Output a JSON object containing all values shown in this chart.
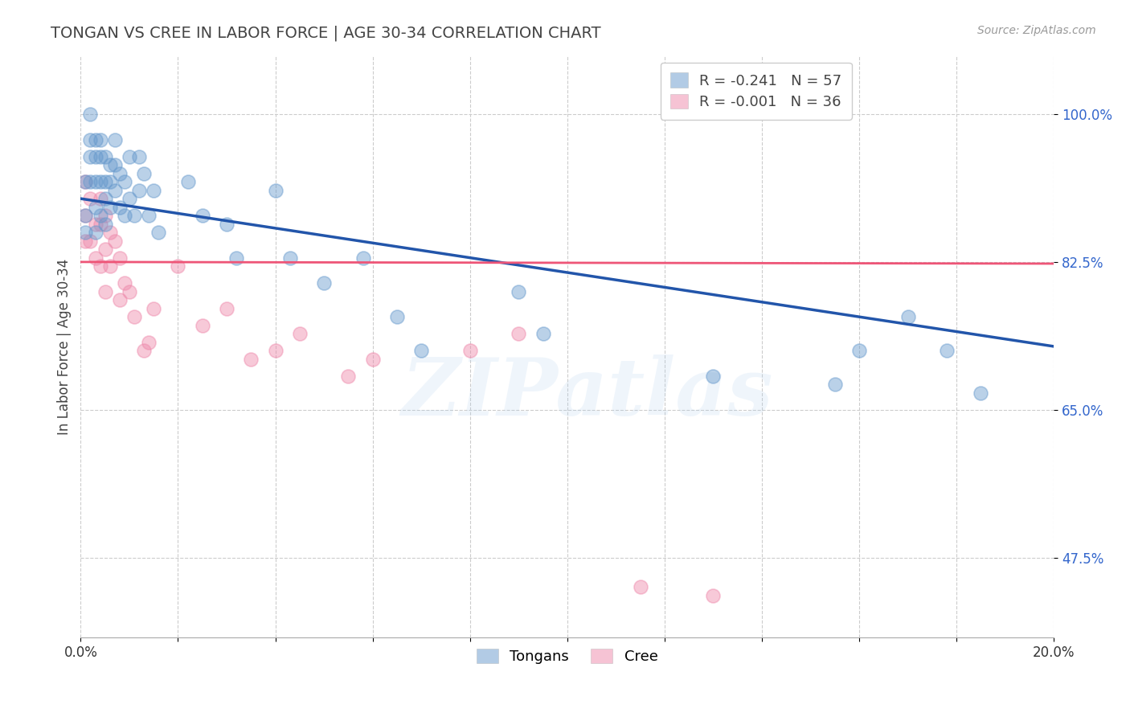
{
  "title": "TONGAN VS CREE IN LABOR FORCE | AGE 30-34 CORRELATION CHART",
  "source": "Source: ZipAtlas.com",
  "ylabel": "In Labor Force | Age 30-34",
  "xlim": [
    0.0,
    0.2
  ],
  "ylim": [
    0.38,
    1.07
  ],
  "yticks": [
    0.475,
    0.65,
    0.825,
    1.0
  ],
  "ytick_labels": [
    "47.5%",
    "65.0%",
    "82.5%",
    "100.0%"
  ],
  "xticks": [
    0.0,
    0.02,
    0.04,
    0.06,
    0.08,
    0.1,
    0.12,
    0.14,
    0.16,
    0.18,
    0.2
  ],
  "xtick_labels": [
    "0.0%",
    "",
    "",
    "",
    "",
    "",
    "",
    "",
    "",
    "",
    "20.0%"
  ],
  "grid_color": "#cccccc",
  "background_color": "#ffffff",
  "tongan_color": "#6699cc",
  "cree_color": "#ee88aa",
  "tongan_line_color": "#2255aa",
  "cree_line_color": "#ee5577",
  "tongan_R": -0.241,
  "tongan_N": 57,
  "cree_R": -0.001,
  "cree_N": 36,
  "legend_label_tongan": "Tongans",
  "legend_label_cree": "Cree",
  "watermark": "ZIPatlas",
  "tongan_x": [
    0.001,
    0.001,
    0.001,
    0.002,
    0.002,
    0.002,
    0.002,
    0.003,
    0.003,
    0.003,
    0.003,
    0.003,
    0.004,
    0.004,
    0.004,
    0.004,
    0.005,
    0.005,
    0.005,
    0.005,
    0.006,
    0.006,
    0.006,
    0.007,
    0.007,
    0.007,
    0.008,
    0.008,
    0.009,
    0.009,
    0.01,
    0.01,
    0.011,
    0.012,
    0.012,
    0.013,
    0.014,
    0.015,
    0.016,
    0.022,
    0.025,
    0.03,
    0.032,
    0.04,
    0.043,
    0.05,
    0.058,
    0.065,
    0.07,
    0.09,
    0.095,
    0.13,
    0.155,
    0.16,
    0.17,
    0.178,
    0.185
  ],
  "tongan_y": [
    0.92,
    0.88,
    0.86,
    1.0,
    0.97,
    0.95,
    0.92,
    0.97,
    0.95,
    0.92,
    0.89,
    0.86,
    0.97,
    0.95,
    0.92,
    0.88,
    0.95,
    0.92,
    0.9,
    0.87,
    0.94,
    0.92,
    0.89,
    0.97,
    0.94,
    0.91,
    0.93,
    0.89,
    0.92,
    0.88,
    0.95,
    0.9,
    0.88,
    0.95,
    0.91,
    0.93,
    0.88,
    0.91,
    0.86,
    0.92,
    0.88,
    0.87,
    0.83,
    0.91,
    0.83,
    0.8,
    0.83,
    0.76,
    0.72,
    0.79,
    0.74,
    0.69,
    0.68,
    0.72,
    0.76,
    0.72,
    0.67
  ],
  "cree_x": [
    0.001,
    0.001,
    0.001,
    0.002,
    0.002,
    0.003,
    0.003,
    0.004,
    0.004,
    0.004,
    0.005,
    0.005,
    0.005,
    0.006,
    0.006,
    0.007,
    0.008,
    0.008,
    0.009,
    0.01,
    0.011,
    0.013,
    0.014,
    0.015,
    0.02,
    0.025,
    0.03,
    0.035,
    0.04,
    0.045,
    0.055,
    0.06,
    0.08,
    0.09,
    0.115,
    0.13
  ],
  "cree_y": [
    0.92,
    0.88,
    0.85,
    0.9,
    0.85,
    0.87,
    0.83,
    0.9,
    0.87,
    0.82,
    0.88,
    0.84,
    0.79,
    0.86,
    0.82,
    0.85,
    0.83,
    0.78,
    0.8,
    0.79,
    0.76,
    0.72,
    0.73,
    0.77,
    0.82,
    0.75,
    0.77,
    0.71,
    0.72,
    0.74,
    0.69,
    0.71,
    0.72,
    0.74,
    0.44,
    0.43
  ],
  "tongan_line_x0": 0.0,
  "tongan_line_y0": 0.9,
  "tongan_line_x1": 0.2,
  "tongan_line_y1": 0.725,
  "cree_line_x0": 0.0,
  "cree_line_y0": 0.825,
  "cree_line_x1": 0.2,
  "cree_line_y1": 0.823
}
